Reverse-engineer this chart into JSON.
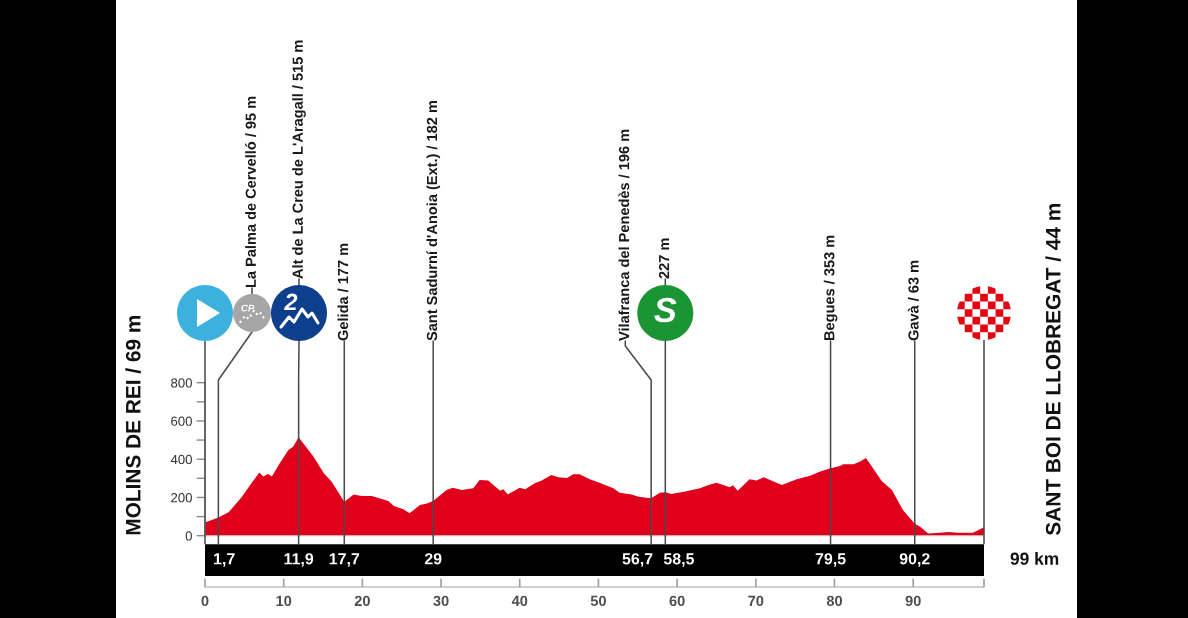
{
  "chart_data": {
    "type": "area",
    "color": "#e1001b",
    "x": [
      0,
      1.7,
      3.0,
      4.7,
      5.9,
      6.9,
      7.4,
      8.0,
      8.5,
      9.5,
      10.6,
      11.2,
      11.9,
      13.8,
      15.1,
      16.1,
      17.7,
      18.9,
      19.9,
      21.2,
      23.3,
      24.0,
      25.2,
      26.0,
      27.3,
      28.2,
      29,
      30.7,
      31.5,
      32.6,
      34.1,
      34.9,
      36.0,
      37.5,
      37.9,
      38.5,
      40.0,
      40.7,
      41.9,
      42.8,
      44.0,
      44.9,
      46.0,
      46.8,
      47.6,
      48.9,
      49.8,
      51.9,
      52.7,
      54.2,
      55.1,
      56.7,
      57.8,
      58.5,
      59.3,
      61.2,
      62.9,
      64.0,
      65.0,
      66.7,
      67.1,
      67.7,
      69.2,
      70.1,
      71.0,
      73.3,
      75.2,
      76.9,
      78.1,
      79.5,
      80.7,
      81.1,
      82.4,
      83.2,
      84.0,
      86.0,
      87.3,
      88.7,
      90.2,
      90.9,
      91.9,
      93.4,
      94.5,
      95.7,
      97.6,
      99
    ],
    "values": [
      69,
      95,
      122,
      204,
      274,
      330,
      309,
      323,
      309,
      379,
      448,
      465,
      515,
      413,
      326,
      282,
      177,
      216,
      207,
      207,
      181,
      155,
      138,
      117,
      160,
      169,
      182,
      239,
      251,
      239,
      248,
      291,
      288,
      235,
      243,
      216,
      251,
      243,
      274,
      288,
      317,
      305,
      302,
      321,
      321,
      295,
      282,
      248,
      225,
      216,
      204,
      196,
      225,
      227,
      218,
      232,
      248,
      265,
      277,
      253,
      264,
      235,
      295,
      288,
      305,
      265,
      295,
      314,
      335,
      353,
      364,
      373,
      373,
      387,
      406,
      286,
      239,
      134,
      63,
      47,
      12,
      16,
      19,
      16,
      16,
      44
    ],
    "xlim": [
      0,
      99
    ],
    "xticks": [
      0,
      10,
      20,
      30,
      40,
      50,
      60,
      70,
      80,
      90,
      {
        "value": 99,
        "label": null
      }
    ],
    "ylim": [
      0,
      800
    ],
    "yticks": [
      0,
      {
        "value": 100,
        "label": null
      },
      200,
      {
        "value": 300,
        "label": null
      },
      400,
      {
        "value": 500,
        "label": null
      },
      600,
      {
        "value": 700,
        "label": null
      },
      800
    ],
    "annotations": [
      "MOLINS DE REI / 69 m",
      {
        "text": "La Palma de Cervelló / 95 m",
        "x": 1.7,
        "y": 95
      },
      "CP",
      {
        "text": "Alt de La Creu de L'Aragall / 515 m",
        "x": 11.9,
        "y": 515
      },
      "2",
      {
        "text": "Gelida / 177 m",
        "x": 17.7,
        "y": 177
      },
      {
        "text": "Sant Sadurní d'Anoia (Ext.) / 182 m",
        "x": 29,
        "y": 182
      },
      {
        "text": "Vilafranca del Penedès / 196 m",
        "x": 56.7,
        "y": 196
      },
      {
        "text": "227 m",
        "x": 58.5,
        "y": 227
      },
      "S",
      {
        "text": "Begues / 353 m",
        "x": 79.5,
        "y": 353
      },
      {
        "text": "Gavà / 63 m",
        "x": 90.2,
        "y": 63
      },
      "SANT BOI DE LLOBREGAT / 44 m"
    ],
    "ref_lines": [
      {
        "axis": "x",
        "value": 0
      },
      {
        "axis": "x",
        "value": 1.7,
        "label": "1,7"
      },
      {
        "axis": "x",
        "value": 11.9,
        "label": "11,9"
      },
      {
        "axis": "x",
        "value": 17.7,
        "label": "17,7"
      },
      {
        "axis": "x",
        "value": 29,
        "label": "29"
      },
      {
        "axis": "x",
        "value": 56.7,
        "label": "56,7"
      },
      {
        "axis": "x",
        "value": 58.5,
        "label": "58,5"
      },
      {
        "axis": "x",
        "value": 79.5,
        "label": "79,5"
      },
      {
        "axis": "x",
        "value": 90.2,
        "label": "90,2"
      },
      {
        "axis": "x",
        "value": 99,
        "label": "99 km"
      }
    ]
  }
}
